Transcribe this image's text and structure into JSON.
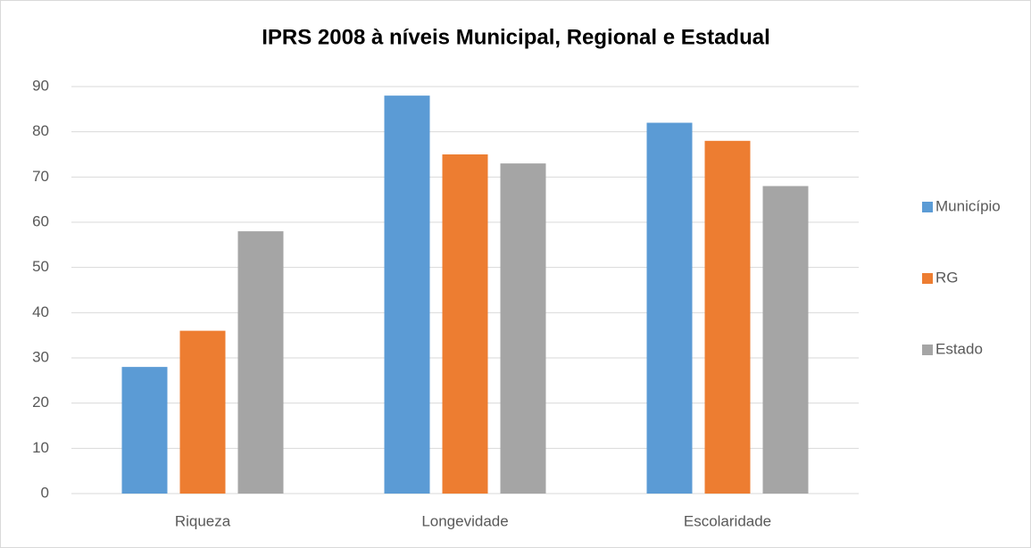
{
  "chart_data": {
    "type": "bar",
    "title": "IPRS 2008 à níveis Municipal, Regional e Estadual",
    "categories": [
      "Riqueza",
      "Longevidade",
      "Escolaridade"
    ],
    "series": [
      {
        "name": "Município",
        "color": "#5b9bd5",
        "values": [
          28,
          88,
          82
        ]
      },
      {
        "name": "RG",
        "color": "#ed7d31",
        "values": [
          36,
          75,
          78
        ]
      },
      {
        "name": "Estado",
        "color": "#a5a5a5",
        "values": [
          58,
          73,
          68
        ]
      }
    ],
    "ylim": [
      0,
      90
    ],
    "yticks": [
      0,
      10,
      20,
      30,
      40,
      50,
      60,
      70,
      80,
      90
    ],
    "grid": true,
    "legend": "right"
  }
}
